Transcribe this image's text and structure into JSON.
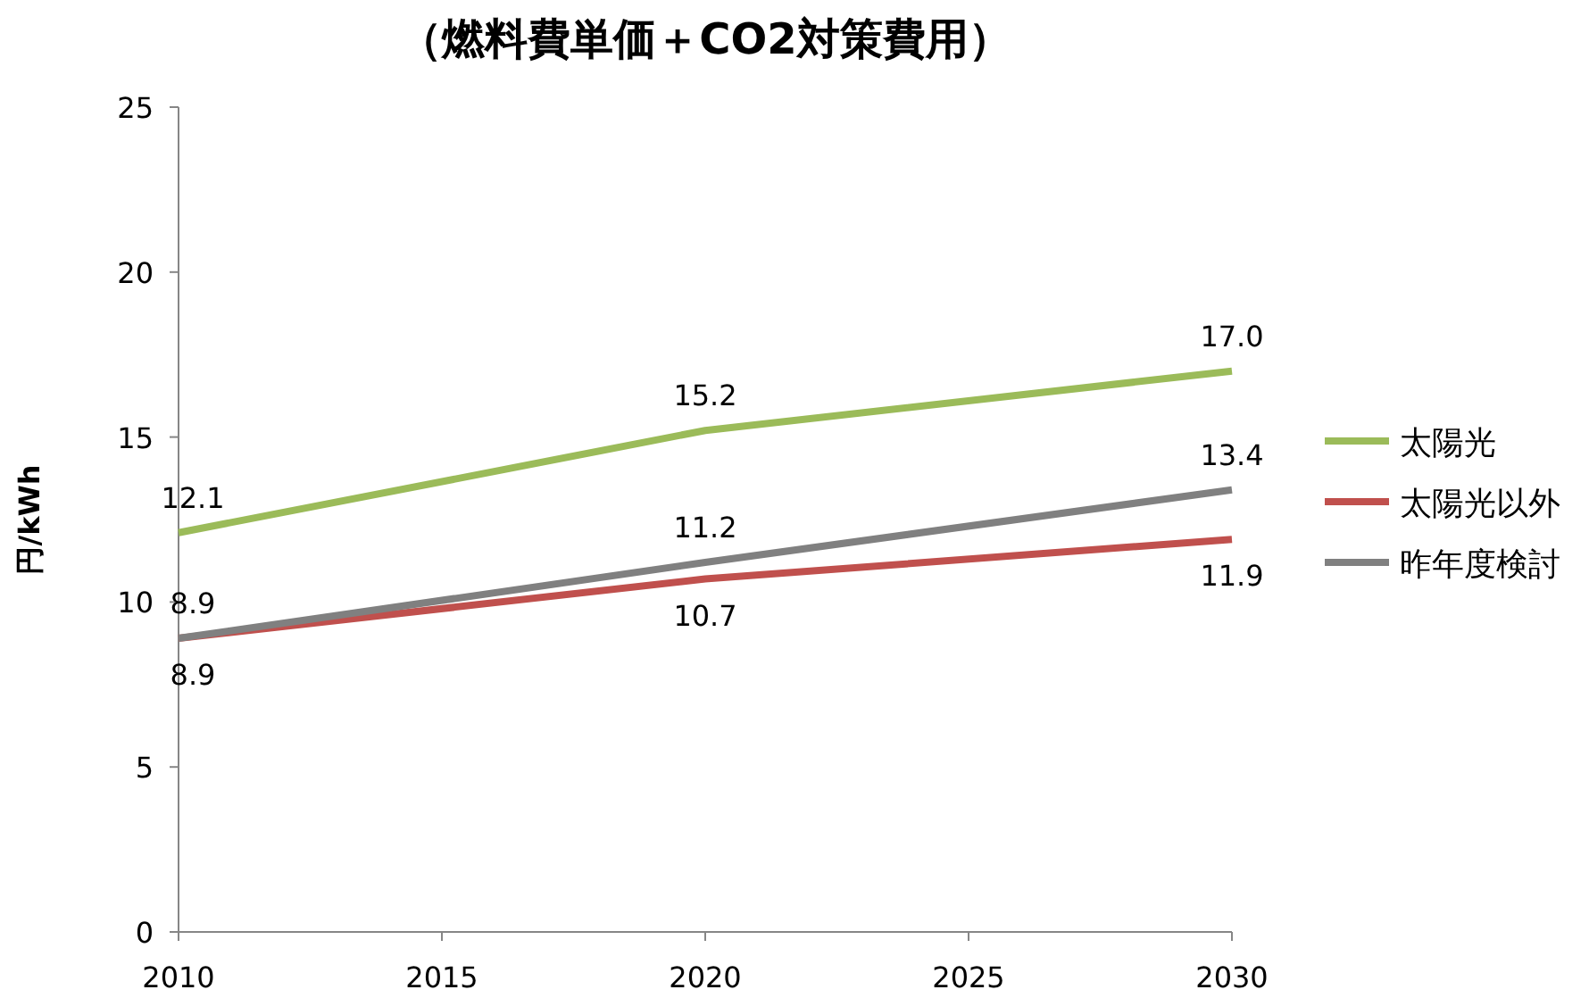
{
  "chart_data": {
    "type": "line",
    "title": "（燃料費単価＋CO2対策費用）",
    "ylabel": "円/kWh",
    "x": [
      2010,
      2020,
      2030
    ],
    "series": [
      {
        "name": "太陽光",
        "color": "#9bbb59",
        "values": [
          12.1,
          15.2,
          17.0
        ],
        "value_labels": [
          "12.1",
          "15.2",
          "17.0"
        ]
      },
      {
        "name": "太陽光以外",
        "color": "#c0504d",
        "values": [
          8.9,
          10.7,
          11.9
        ],
        "value_labels": [
          "8.9",
          "10.7",
          "11.9"
        ]
      },
      {
        "name": "昨年度検討",
        "color": "#808080",
        "values": [
          8.9,
          11.2,
          13.4
        ],
        "value_labels": [
          "8.9",
          "11.2",
          "13.4"
        ]
      }
    ],
    "xlim": [
      2010,
      2030
    ],
    "xticks": [
      2010,
      2015,
      2020,
      2025,
      2030
    ],
    "ylim": [
      0,
      25
    ],
    "yticks": [
      0,
      5,
      10,
      15,
      20,
      25
    ],
    "grid": false,
    "legend": "right",
    "marker": "none",
    "line_style": "solid"
  }
}
